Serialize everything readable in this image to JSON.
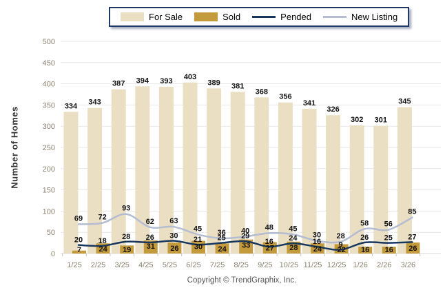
{
  "legend": {
    "items": [
      {
        "label": "For Sale",
        "swatch": "box",
        "color": "#EBDFC3"
      },
      {
        "label": "Sold",
        "swatch": "box",
        "color": "#C49B3C"
      },
      {
        "label": "Pended",
        "swatch": "line",
        "color": "#17375E"
      },
      {
        "label": "New Listing",
        "swatch": "line",
        "color": "#B3BCD1"
      }
    ]
  },
  "ylabel": "Number of Homes",
  "footer": {
    "copyright": "Copyright © TrendGraphix, Inc."
  },
  "chart_data": {
    "type": "bar+line combo",
    "categories": [
      "1/25",
      "2/25",
      "3/25",
      "4/25",
      "5/25",
      "6/25",
      "7/25",
      "8/25",
      "9/25",
      "10/25",
      "11/25",
      "12/25",
      "1/26",
      "2/26",
      "3/26"
    ],
    "series": [
      {
        "name": "For Sale",
        "type": "bar",
        "color": "#EBDFC3",
        "values": [
          334,
          343,
          387,
          394,
          393,
          403,
          389,
          381,
          368,
          356,
          341,
          326,
          302,
          301,
          345
        ]
      },
      {
        "name": "Sold",
        "type": "bar",
        "color": "#C49B3C",
        "values": [
          7,
          24,
          19,
          31,
          26,
          30,
          24,
          33,
          27,
          28,
          24,
          22,
          16,
          16,
          26
        ]
      },
      {
        "name": "Pended",
        "type": "line",
        "color": "#17375E",
        "values": [
          20,
          18,
          28,
          26,
          30,
          21,
          25,
          29,
          16,
          24,
          16,
          9,
          26,
          25,
          27
        ]
      },
      {
        "name": "New Listing",
        "type": "line",
        "color": "#B3BCD1",
        "values": [
          69,
          72,
          93,
          62,
          63,
          45,
          36,
          40,
          48,
          45,
          30,
          28,
          58,
          56,
          85
        ]
      }
    ],
    "title": "",
    "xlabel": "",
    "ylabel": "Number of Homes",
    "ylim": [
      0,
      500
    ],
    "ytick_step": 50,
    "grid": true,
    "legend_position": "top-center"
  }
}
